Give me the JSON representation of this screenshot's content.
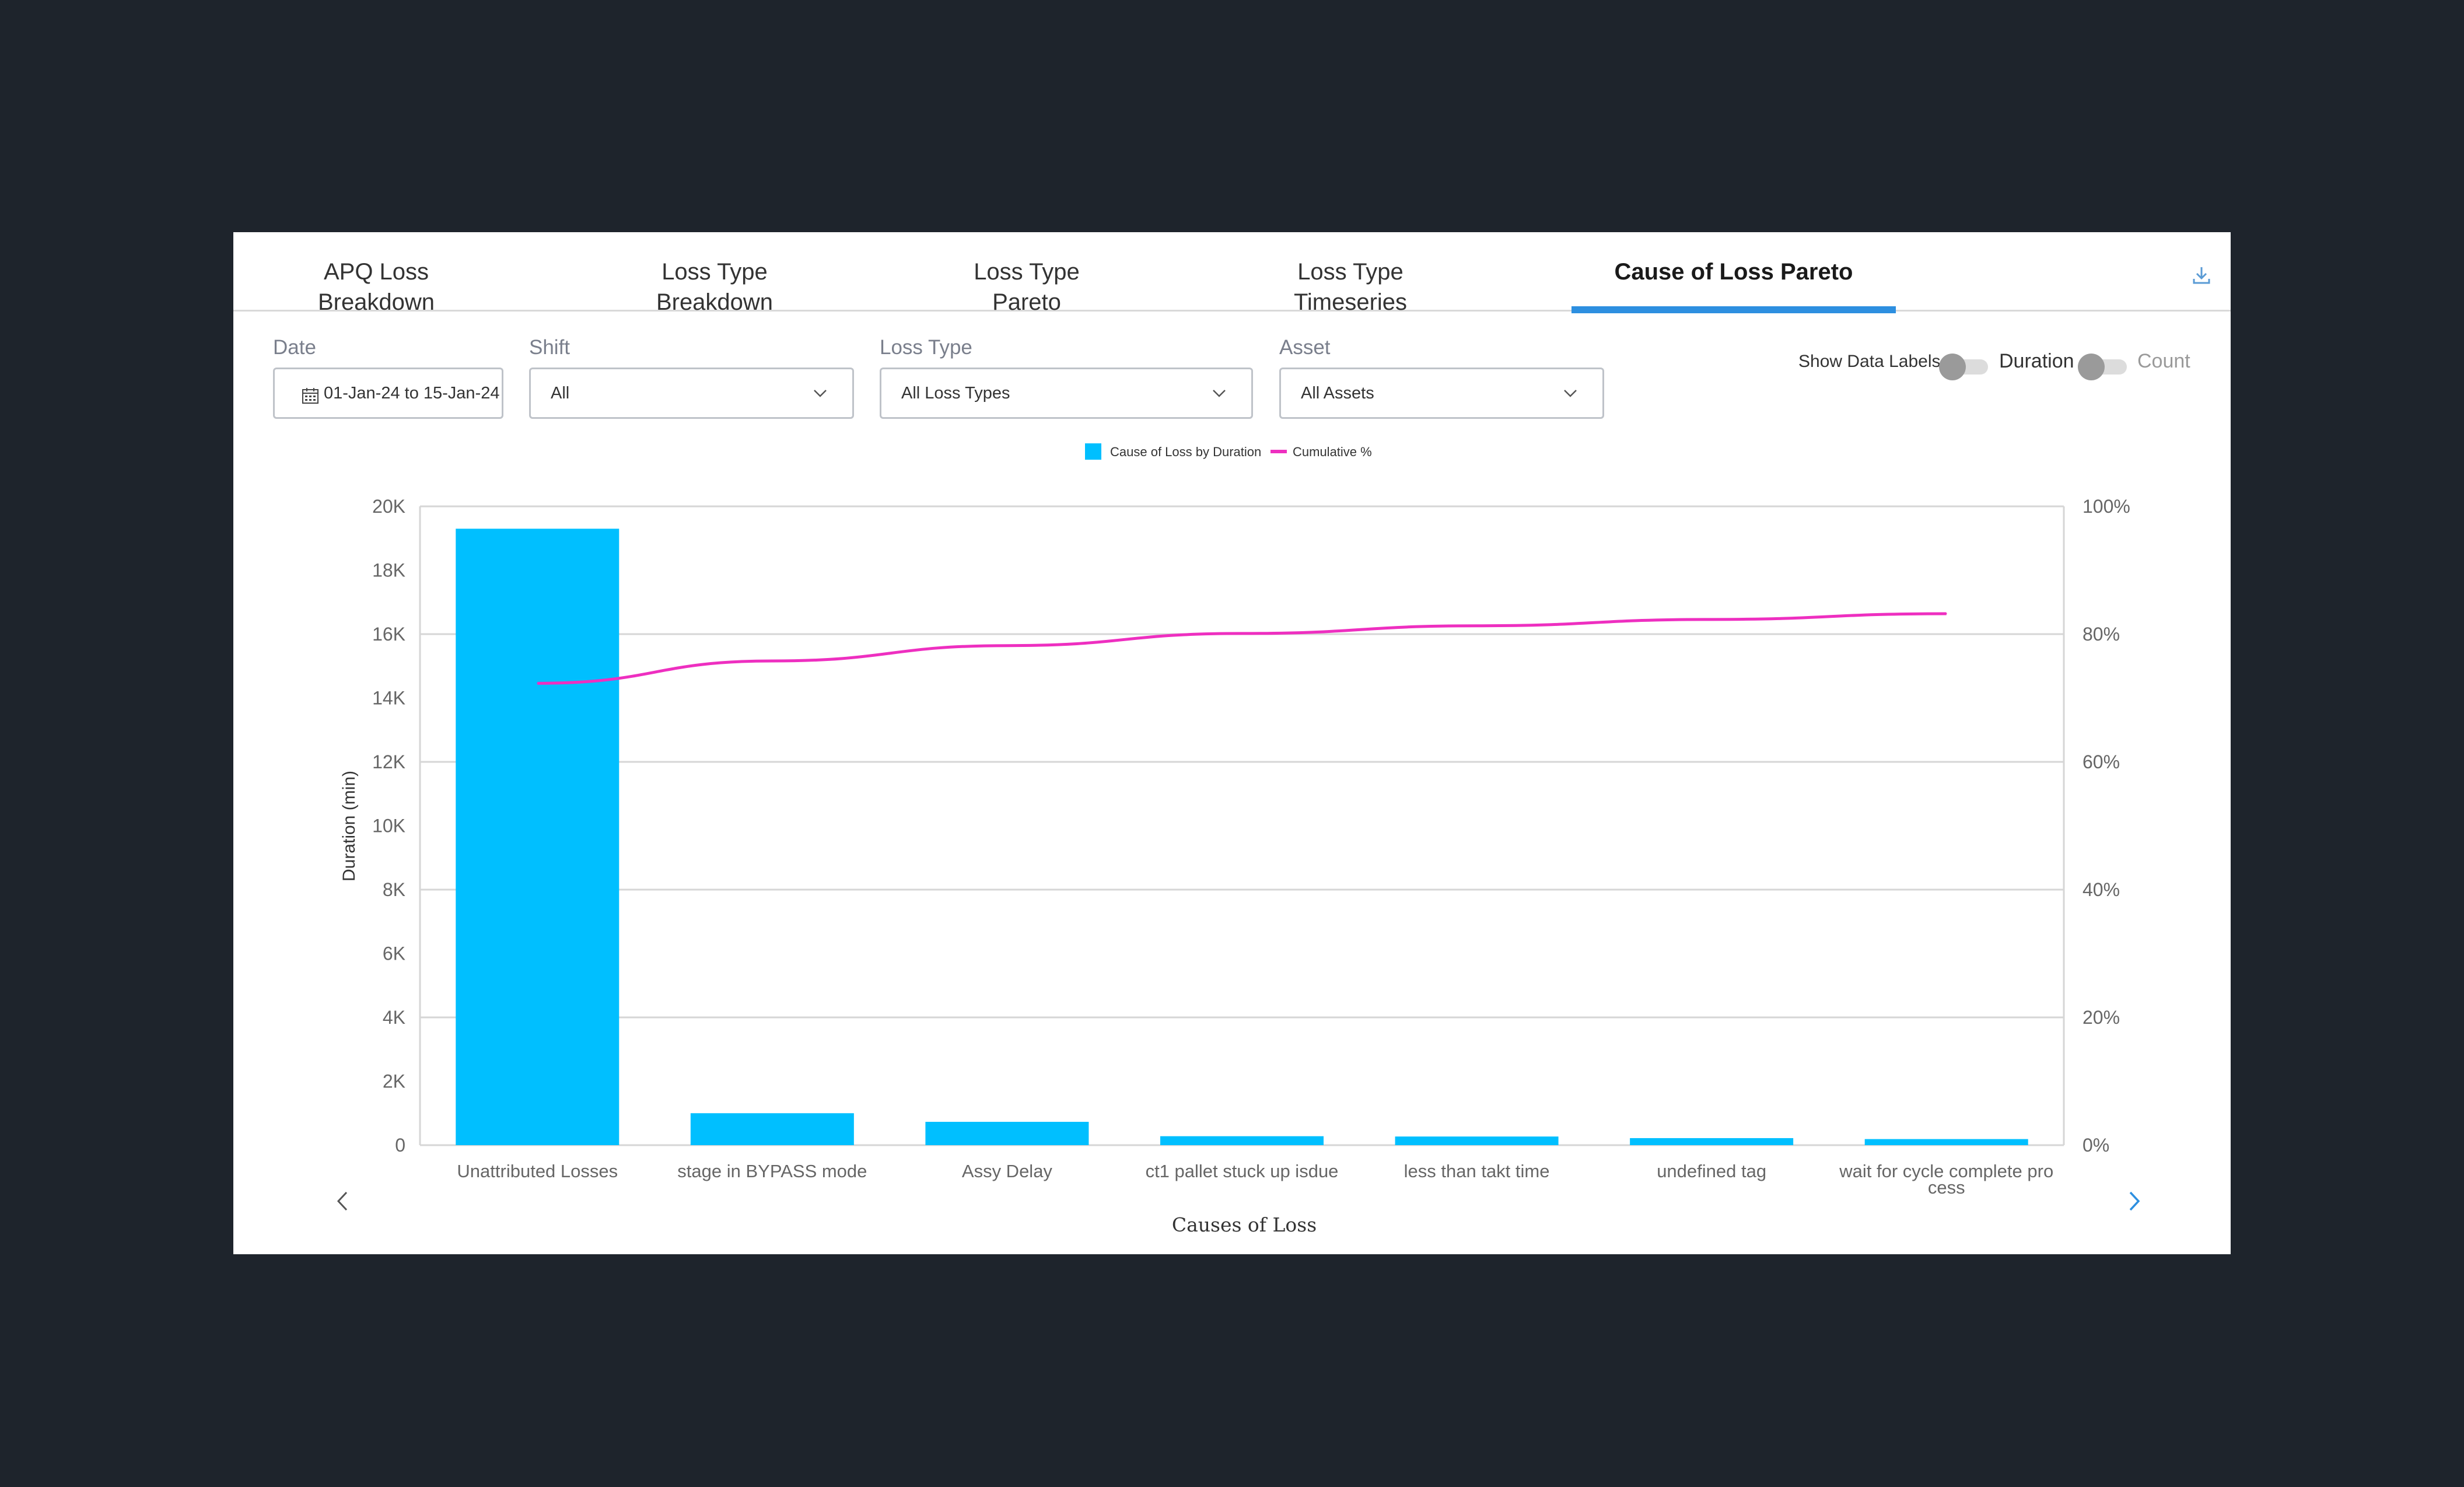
{
  "tabs": [
    {
      "label": "APQ Loss Breakdown",
      "active": false
    },
    {
      "label": "Loss Type Breakdown",
      "active": false
    },
    {
      "label": "Loss Type Pareto",
      "active": false
    },
    {
      "label": "Loss Type Timeseries",
      "active": false
    },
    {
      "label": "Cause of Loss Pareto",
      "active": true
    }
  ],
  "toolbar": {
    "download_icon": "download-icon"
  },
  "filters": {
    "date": {
      "label": "Date",
      "value": "01-Jan-24 to 15-Jan-24",
      "icon": "calendar-icon"
    },
    "shift": {
      "label": "Shift",
      "value": "All"
    },
    "loss_type": {
      "label": "Loss Type",
      "value": "All Loss Types"
    },
    "asset": {
      "label": "Asset",
      "value": "All Assets"
    }
  },
  "toggles": {
    "show_data_labels": {
      "label": "Show Data Labels",
      "on": false
    },
    "metric": {
      "left_label": "Duration",
      "right_label": "Count",
      "on": false
    }
  },
  "colors": {
    "accent": "#2d8fe0",
    "bar": "#00bfff",
    "line": "#ee2fc0"
  },
  "chart_data": {
    "type": "bar",
    "legend": {
      "position": "top-center",
      "entries": [
        "Cause of Loss by Duration",
        "Cumulative %"
      ]
    },
    "categories": [
      "Unattributed Losses",
      "stage in BYPASS mode",
      "Assy Delay",
      "ct1 pallet stuck up isdue",
      "less than takt time",
      "undefined tag",
      "wait for cycle complete process"
    ],
    "category_label_lines": [
      [
        "Unattributed Losses"
      ],
      [
        "stage in BYPASS mode"
      ],
      [
        "Assy Delay"
      ],
      [
        "ct1 pallet stuck up isdue"
      ],
      [
        "less than takt time"
      ],
      [
        "undefined tag"
      ],
      [
        "wait for cycle complete pro",
        "cess"
      ]
    ],
    "series": [
      {
        "name": "Cause of Loss by Duration",
        "type": "bar",
        "axis": "left",
        "values": [
          19300,
          1000,
          730,
          280,
          270,
          220,
          190
        ]
      },
      {
        "name": "Cumulative %",
        "type": "line",
        "axis": "right",
        "values": [
          72.3,
          75.8,
          78.2,
          80.1,
          81.3,
          82.3,
          83.2
        ]
      }
    ],
    "xlabel": "Causes of Loss",
    "ylabel": "Duration (min)",
    "ylim": [
      0,
      20000
    ],
    "y_ticks": [
      "0",
      "2K",
      "4K",
      "6K",
      "8K",
      "10K",
      "12K",
      "14K",
      "16K",
      "18K",
      "20K"
    ],
    "y2lim": [
      0,
      100
    ],
    "y2_ticks": [
      "0%",
      "20%",
      "40%",
      "60%",
      "80%",
      "100%"
    ],
    "grid": true,
    "pagination": {
      "prev_icon": "chevron-left-icon",
      "next_icon": "chevron-right-icon"
    }
  }
}
